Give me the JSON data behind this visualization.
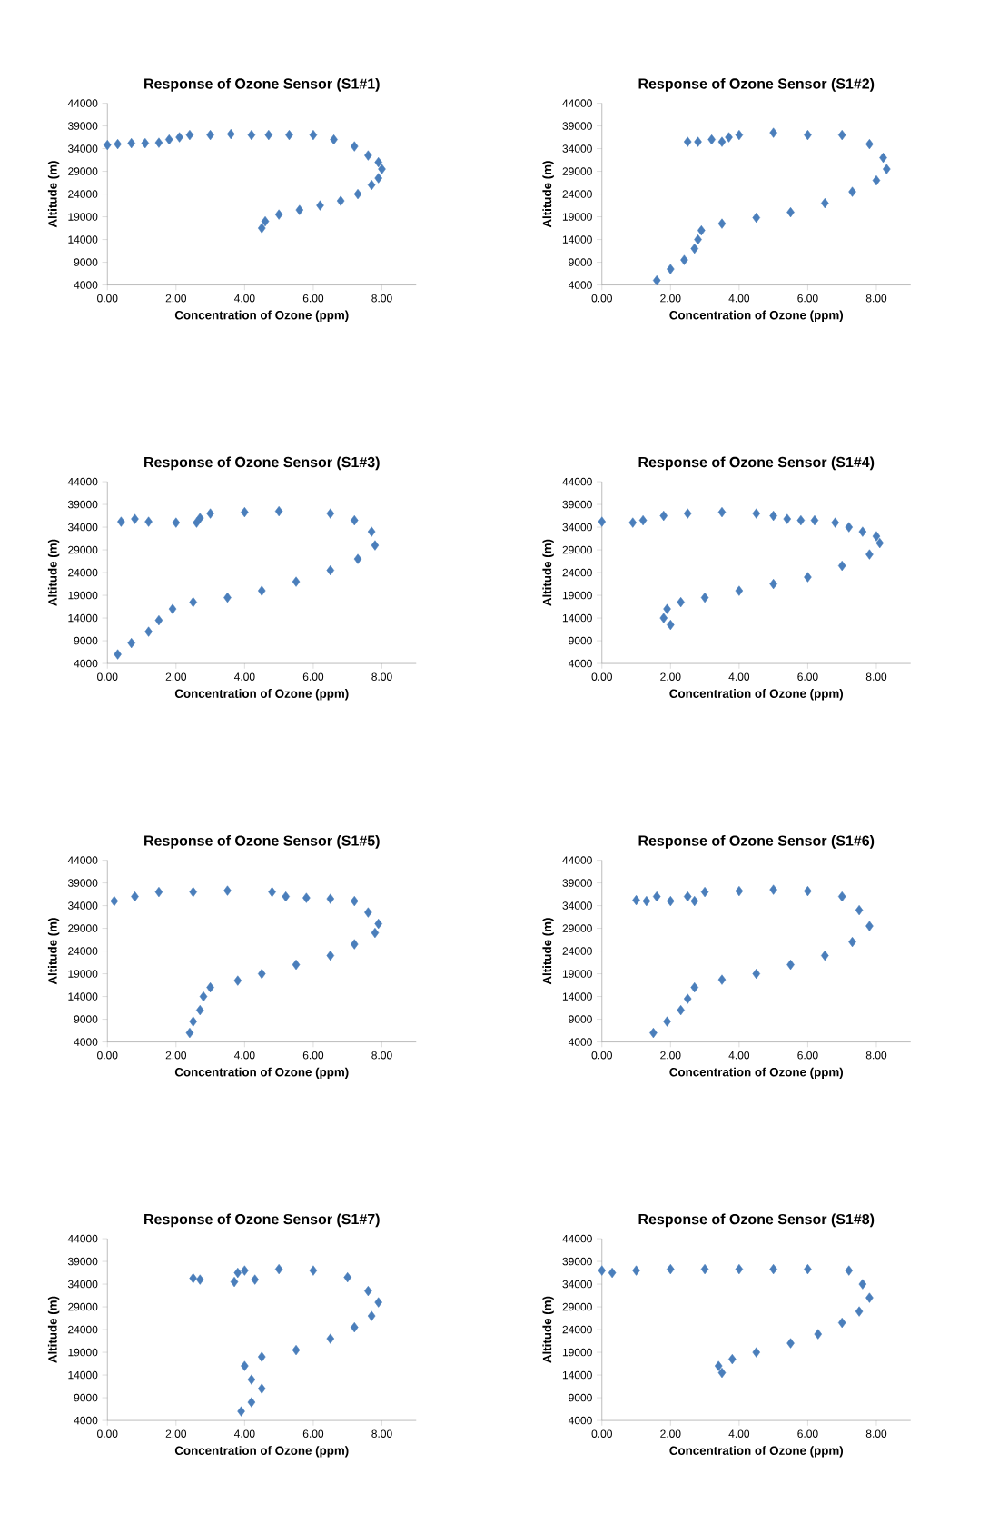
{
  "chart_data": [
    {
      "type": "scatter",
      "title": "Response of Ozone Sensor (S1#1)",
      "xlabel": "Concentration of Ozone (ppm)",
      "ylabel": "Altitude (m)",
      "color": "#4a7ebb",
      "marker": "diamond",
      "xlim": [
        0,
        9
      ],
      "ylim": [
        4000,
        44000
      ],
      "xticks": [
        {
          "value": 0,
          "label": "0.00"
        },
        {
          "value": 2,
          "label": "2.00"
        },
        {
          "value": 4,
          "label": "4.00"
        },
        {
          "value": 6,
          "label": "6.00"
        },
        {
          "value": 8,
          "label": "8.00"
        }
      ],
      "yticks": [
        4000,
        9000,
        14000,
        19000,
        24000,
        29000,
        34000,
        39000,
        44000
      ],
      "x": [
        4.5,
        4.6,
        5.0,
        5.6,
        6.2,
        6.8,
        7.3,
        7.7,
        7.9,
        8.0,
        7.9,
        7.6,
        7.2,
        6.6,
        6.0,
        5.3,
        4.7,
        4.2,
        3.6,
        3.0,
        2.4,
        2.1,
        1.8,
        1.5,
        1.1,
        0.7,
        0.3,
        0.0
      ],
      "values": [
        16500,
        18000,
        19500,
        20500,
        21500,
        22500,
        24000,
        26000,
        27500,
        29500,
        31000,
        32500,
        34500,
        36000,
        37000,
        37000,
        37000,
        37000,
        37200,
        37000,
        37000,
        36500,
        36000,
        35300,
        35200,
        35200,
        35000,
        34800
      ]
    },
    {
      "type": "scatter",
      "title": "Response of Ozone Sensor (S1#2)",
      "xlabel": "Concentration of Ozone (ppm)",
      "ylabel": "Altitude (m)",
      "color": "#4a7ebb",
      "marker": "diamond",
      "xlim": [
        0,
        9
      ],
      "ylim": [
        4000,
        44000
      ],
      "xticks": [
        {
          "value": 0,
          "label": "0.00"
        },
        {
          "value": 2,
          "label": "2.00"
        },
        {
          "value": 4,
          "label": "4.00"
        },
        {
          "value": 6,
          "label": "6.00"
        },
        {
          "value": 8,
          "label": "8.00"
        }
      ],
      "yticks": [
        4000,
        9000,
        14000,
        19000,
        24000,
        29000,
        34000,
        39000,
        44000
      ],
      "x": [
        1.6,
        2.0,
        2.4,
        2.7,
        2.8,
        2.9,
        3.5,
        4.5,
        5.5,
        6.5,
        7.3,
        8.0,
        8.3,
        8.2,
        7.8,
        7.0,
        6.0,
        5.0,
        4.0,
        3.7,
        3.5,
        3.2,
        2.8,
        2.5
      ],
      "values": [
        5000,
        7500,
        9500,
        12000,
        14000,
        16000,
        17500,
        18800,
        20000,
        22000,
        24500,
        27000,
        29500,
        32000,
        35000,
        37000,
        37000,
        37500,
        37000,
        36500,
        35500,
        36000,
        35500,
        35500
      ]
    },
    {
      "type": "scatter",
      "title": "Response of Ozone Sensor (S1#3)",
      "xlabel": "Concentration of Ozone (ppm)",
      "ylabel": "Altitude (m)",
      "color": "#4a7ebb",
      "marker": "diamond",
      "xlim": [
        0,
        9
      ],
      "ylim": [
        4000,
        44000
      ],
      "xticks": [
        {
          "value": 0,
          "label": "0.00"
        },
        {
          "value": 2,
          "label": "2.00"
        },
        {
          "value": 4,
          "label": "4.00"
        },
        {
          "value": 6,
          "label": "6.00"
        },
        {
          "value": 8,
          "label": "8.00"
        }
      ],
      "yticks": [
        4000,
        9000,
        14000,
        19000,
        24000,
        29000,
        34000,
        39000,
        44000
      ],
      "x": [
        0.3,
        0.7,
        1.2,
        1.5,
        1.9,
        2.5,
        3.5,
        4.5,
        5.5,
        6.5,
        7.3,
        7.8,
        7.7,
        7.2,
        6.5,
        5.0,
        4.0,
        3.0,
        2.7,
        2.6,
        2.0,
        1.2,
        0.8,
        0.4
      ],
      "values": [
        6000,
        8500,
        11000,
        13500,
        16000,
        17500,
        18500,
        20000,
        22000,
        24500,
        27000,
        30000,
        33000,
        35500,
        37000,
        37500,
        37300,
        37000,
        36000,
        35000,
        35000,
        35200,
        35800,
        35200
      ]
    },
    {
      "type": "scatter",
      "title": "Response of Ozone Sensor (S1#4)",
      "xlabel": "Concentration of Ozone (ppm)",
      "ylabel": "Altitude (m)",
      "color": "#4a7ebb",
      "marker": "diamond",
      "xlim": [
        0,
        9
      ],
      "ylim": [
        4000,
        44000
      ],
      "xticks": [
        {
          "value": 0,
          "label": "0.00"
        },
        {
          "value": 2,
          "label": "2.00"
        },
        {
          "value": 4,
          "label": "4.00"
        },
        {
          "value": 6,
          "label": "6.00"
        },
        {
          "value": 8,
          "label": "8.00"
        }
      ],
      "yticks": [
        4000,
        9000,
        14000,
        19000,
        24000,
        29000,
        34000,
        39000,
        44000
      ],
      "x": [
        2.0,
        1.8,
        1.9,
        2.3,
        3.0,
        4.0,
        5.0,
        6.0,
        7.0,
        7.8,
        8.1,
        8.0,
        7.6,
        7.2,
        6.8,
        6.2,
        5.8,
        5.4,
        5.0,
        4.5,
        3.5,
        2.5,
        1.8,
        1.2,
        0.9,
        0.0
      ],
      "values": [
        12500,
        14000,
        16000,
        17500,
        18500,
        20000,
        21500,
        23000,
        25500,
        28000,
        30500,
        32000,
        33000,
        34000,
        35000,
        35500,
        35500,
        35800,
        36500,
        37000,
        37300,
        37000,
        36500,
        35500,
        35000,
        35200
      ]
    },
    {
      "type": "scatter",
      "title": "Response of Ozone Sensor (S1#5)",
      "xlabel": "Concentration of Ozone (ppm)",
      "ylabel": "Altitude (m)",
      "color": "#4a7ebb",
      "marker": "diamond",
      "xlim": [
        0,
        9
      ],
      "ylim": [
        4000,
        44000
      ],
      "xticks": [
        {
          "value": 0,
          "label": "0.00"
        },
        {
          "value": 2,
          "label": "2.00"
        },
        {
          "value": 4,
          "label": "4.00"
        },
        {
          "value": 6,
          "label": "6.00"
        },
        {
          "value": 8,
          "label": "8.00"
        }
      ],
      "yticks": [
        4000,
        9000,
        14000,
        19000,
        24000,
        29000,
        34000,
        39000,
        44000
      ],
      "x": [
        2.4,
        2.5,
        2.7,
        2.8,
        3.0,
        3.8,
        4.5,
        5.5,
        6.5,
        7.2,
        7.8,
        7.9,
        7.6,
        7.2,
        6.5,
        5.8,
        5.2,
        4.8,
        3.5,
        2.5,
        1.5,
        0.8,
        0.2
      ],
      "values": [
        6000,
        8500,
        11000,
        14000,
        16000,
        17500,
        19000,
        21000,
        23000,
        25500,
        28000,
        30000,
        32500,
        35000,
        35500,
        35700,
        36000,
        37000,
        37300,
        37000,
        37000,
        36000,
        35000
      ]
    },
    {
      "type": "scatter",
      "title": "Response of Ozone Sensor (S1#6)",
      "xlabel": "Concentration of Ozone (ppm)",
      "ylabel": "Altitude (m)",
      "color": "#4a7ebb",
      "marker": "diamond",
      "xlim": [
        0,
        9
      ],
      "ylim": [
        4000,
        44000
      ],
      "xticks": [
        {
          "value": 0,
          "label": "0.00"
        },
        {
          "value": 2,
          "label": "2.00"
        },
        {
          "value": 4,
          "label": "4.00"
        },
        {
          "value": 6,
          "label": "6.00"
        },
        {
          "value": 8,
          "label": "8.00"
        }
      ],
      "yticks": [
        4000,
        9000,
        14000,
        19000,
        24000,
        29000,
        34000,
        39000,
        44000
      ],
      "x": [
        1.5,
        1.9,
        2.3,
        2.5,
        2.7,
        3.5,
        4.5,
        5.5,
        6.5,
        7.3,
        7.8,
        7.5,
        7.0,
        6.0,
        5.0,
        4.0,
        3.0,
        2.5,
        2.7,
        2.0,
        1.3,
        1.6,
        1.0
      ],
      "values": [
        6000,
        8500,
        11000,
        13500,
        16000,
        17700,
        19000,
        21000,
        23000,
        26000,
        29500,
        33000,
        36000,
        37200,
        37500,
        37200,
        37000,
        36000,
        35000,
        35000,
        35000,
        36000,
        35200
      ]
    },
    {
      "type": "scatter",
      "title": "Response of Ozone Sensor (S1#7)",
      "xlabel": "Concentration of Ozone (ppm)",
      "ylabel": "Altitude (m)",
      "color": "#4a7ebb",
      "marker": "diamond",
      "xlim": [
        0,
        9
      ],
      "ylim": [
        4000,
        44000
      ],
      "xticks": [
        {
          "value": 0,
          "label": "0.00"
        },
        {
          "value": 2,
          "label": "2.00"
        },
        {
          "value": 4,
          "label": "4.00"
        },
        {
          "value": 6,
          "label": "6.00"
        },
        {
          "value": 8,
          "label": "8.00"
        }
      ],
      "yticks": [
        4000,
        9000,
        14000,
        19000,
        24000,
        29000,
        34000,
        39000,
        44000
      ],
      "x": [
        3.9,
        4.2,
        4.5,
        4.2,
        4.0,
        4.5,
        5.5,
        6.5,
        7.2,
        7.7,
        7.9,
        7.6,
        7.0,
        6.0,
        5.0,
        4.0,
        3.8,
        4.3,
        3.7,
        2.7,
        2.5
      ],
      "values": [
        6000,
        8000,
        11000,
        13000,
        16000,
        18000,
        19500,
        22000,
        24500,
        27000,
        30000,
        32500,
        35500,
        37000,
        37300,
        37000,
        36500,
        35000,
        34500,
        35000,
        35300
      ]
    },
    {
      "type": "scatter",
      "title": "Response of Ozone Sensor (S1#8)",
      "xlabel": "Concentration of Ozone (ppm)",
      "ylabel": "Altitude (m)",
      "color": "#4a7ebb",
      "marker": "diamond",
      "xlim": [
        0,
        9
      ],
      "ylim": [
        4000,
        44000
      ],
      "xticks": [
        {
          "value": 0,
          "label": "0.00"
        },
        {
          "value": 2,
          "label": "2.00"
        },
        {
          "value": 4,
          "label": "4.00"
        },
        {
          "value": 6,
          "label": "6.00"
        },
        {
          "value": 8,
          "label": "8.00"
        }
      ],
      "yticks": [
        4000,
        9000,
        14000,
        19000,
        24000,
        29000,
        34000,
        39000,
        44000
      ],
      "x": [
        3.5,
        3.4,
        3.8,
        4.5,
        5.5,
        6.3,
        7.0,
        7.5,
        7.8,
        7.6,
        7.2,
        6.0,
        5.0,
        4.0,
        3.0,
        2.0,
        1.0,
        0.0,
        0.3
      ],
      "values": [
        14500,
        16000,
        17500,
        19000,
        21000,
        23000,
        25500,
        28000,
        31000,
        34000,
        37000,
        37300,
        37300,
        37300,
        37300,
        37300,
        37000,
        37000,
        36500
      ]
    }
  ]
}
